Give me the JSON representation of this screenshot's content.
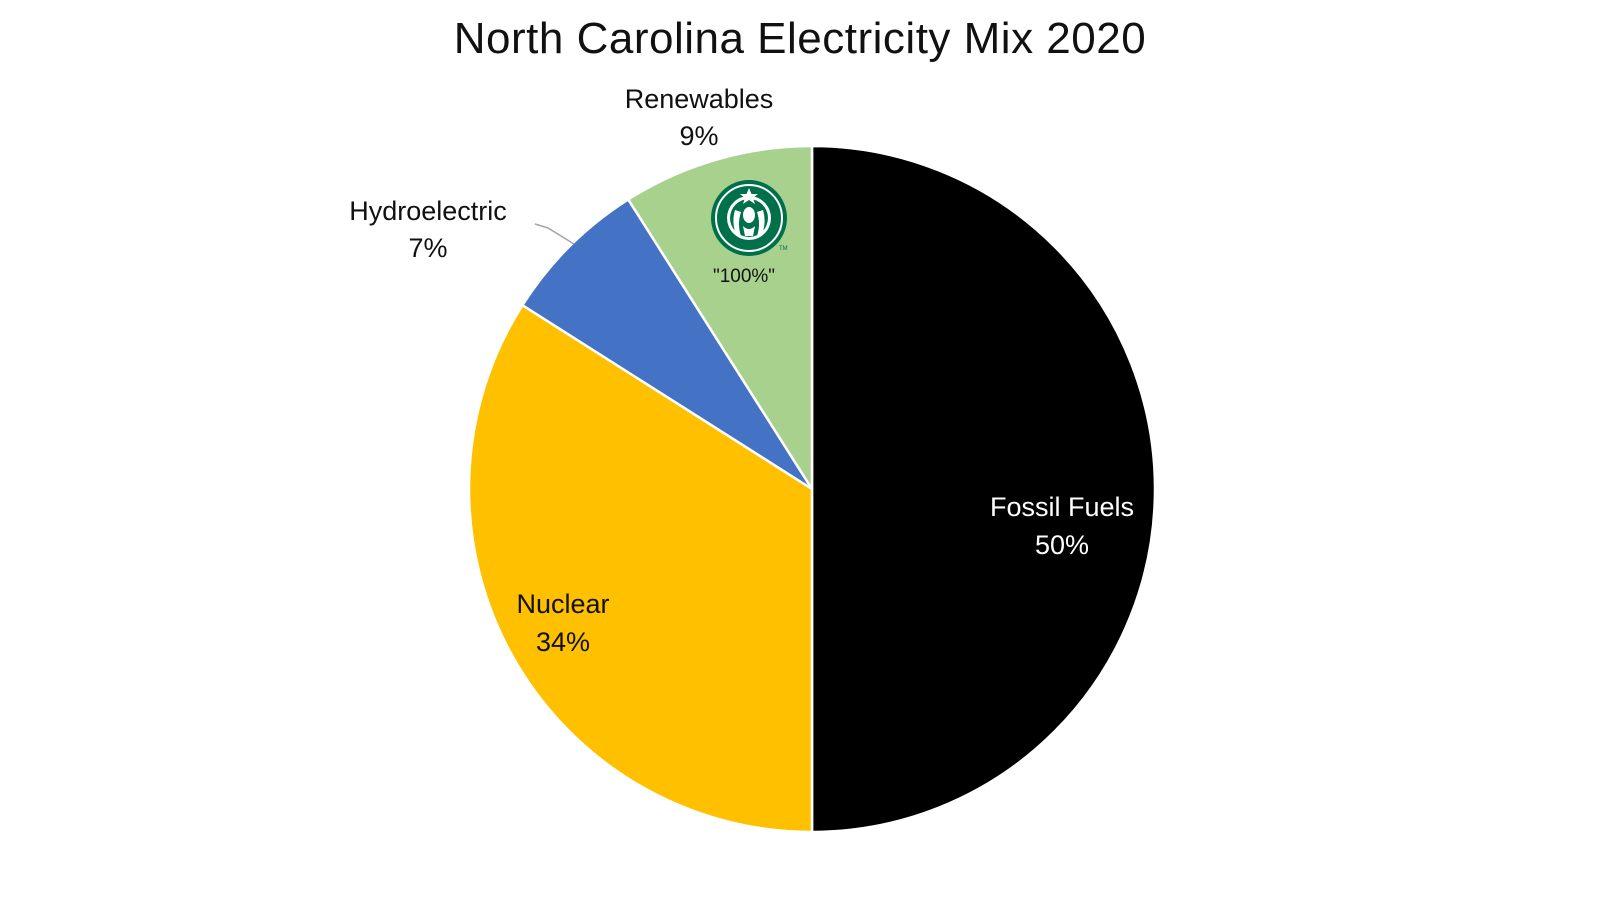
{
  "chart_data": {
    "type": "pie",
    "title": "North Carolina Electricity Mix 2020",
    "slices": [
      {
        "label": "Fossil Fuels",
        "value": 50,
        "value_label": "50%",
        "color": "#000000",
        "text_color": "#ffffff"
      },
      {
        "label": "Nuclear",
        "value": 34,
        "value_label": "34%",
        "color": "#FFC000",
        "text_color": "#111111"
      },
      {
        "label": "Hydroelectric",
        "value": 7,
        "value_label": "7%",
        "color": "#4472C4",
        "text_color": "#111111"
      },
      {
        "label": "Renewables",
        "value": 9,
        "value_label": "9%",
        "color": "#A9D18E",
        "text_color": "#111111"
      }
    ],
    "start_angle": "12 o'clock",
    "direction": "clockwise",
    "legend": "none"
  },
  "annotation": {
    "text": "\"100%\"",
    "logo_icon": "starbucks-logo-icon",
    "logo_color": "#00704A"
  }
}
